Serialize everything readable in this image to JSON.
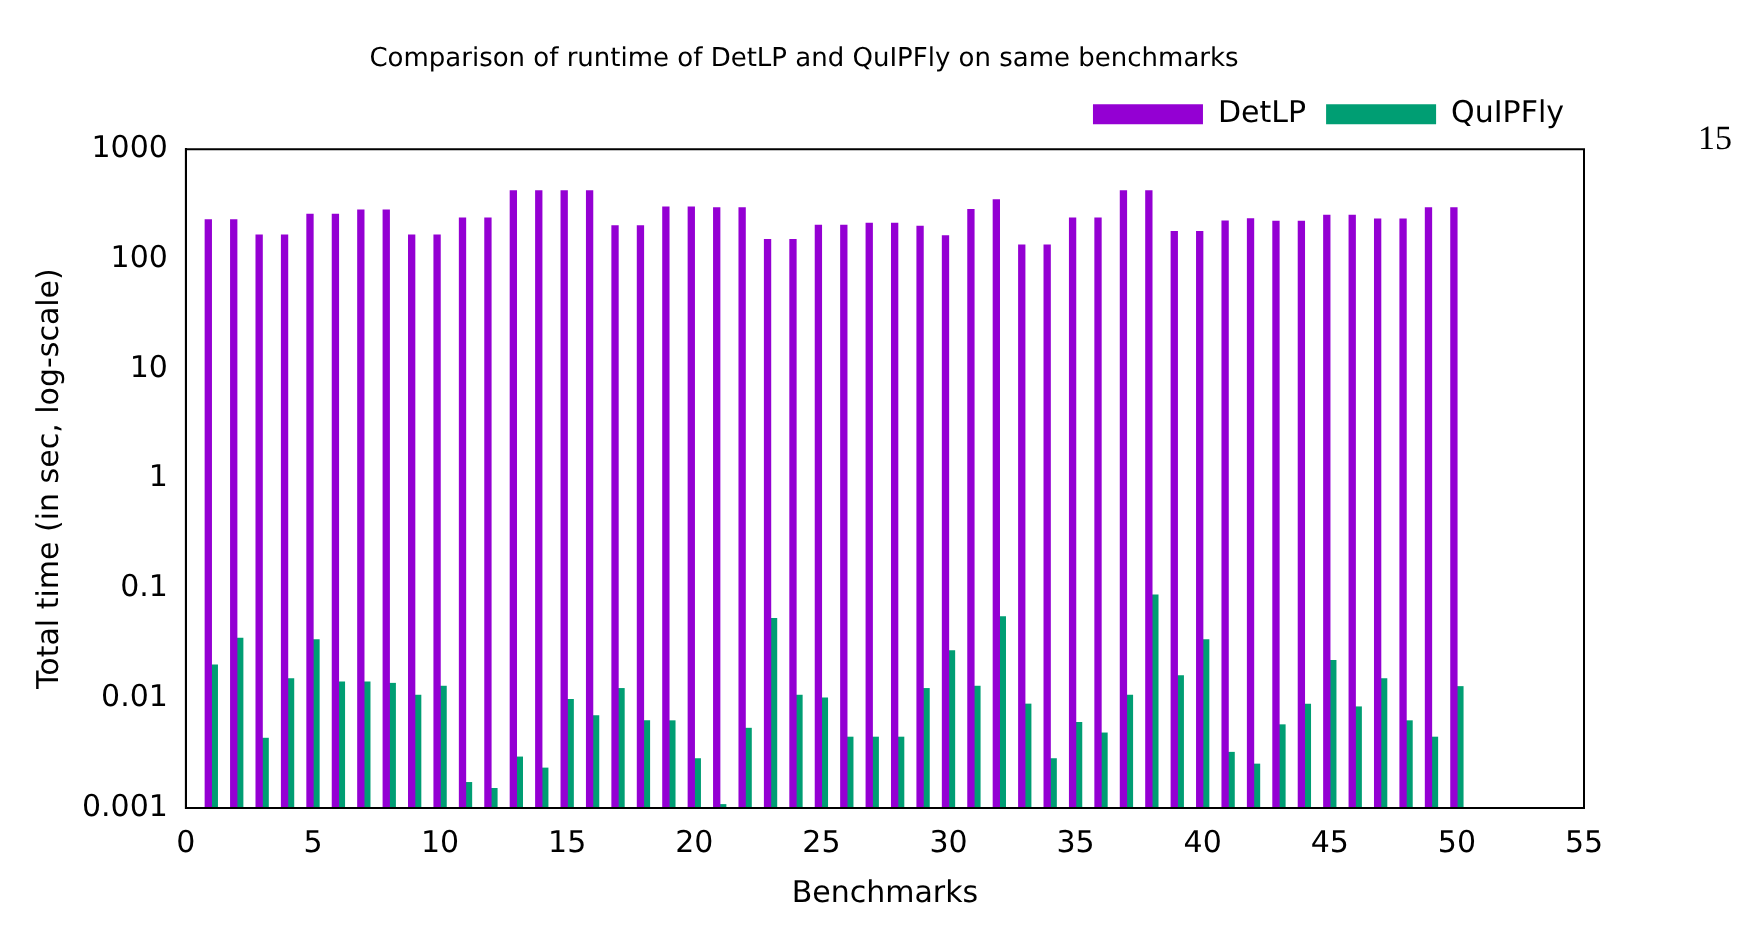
{
  "chart_data": {
    "type": "bar",
    "title": "Comparison of runtime of DetLP and QuIPFly on same benchmarks",
    "xlabel": "Benchmarks",
    "ylabel": "Total time (in sec, log-scale)",
    "x": [
      1,
      2,
      3,
      4,
      5,
      6,
      7,
      8,
      9,
      10,
      11,
      12,
      13,
      14,
      15,
      16,
      17,
      18,
      19,
      20,
      21,
      22,
      23,
      24,
      25,
      26,
      27,
      28,
      29,
      30,
      31,
      32,
      33,
      34,
      35,
      36,
      37,
      38,
      39,
      40,
      41,
      42,
      43,
      44,
      45,
      46,
      47,
      48,
      49,
      50
    ],
    "series": [
      {
        "name": "DetLP",
        "color": "#9400d3",
        "values": [
          227,
          227,
          165,
          165,
          255,
          255,
          278,
          278,
          165,
          165,
          236,
          236,
          417,
          417,
          417,
          417,
          200,
          200,
          296,
          296,
          292,
          292,
          150,
          150,
          202,
          202,
          211,
          211,
          198,
          162,
          282,
          345,
          134,
          134,
          236,
          236,
          417,
          417,
          177,
          177,
          221,
          232,
          220,
          220,
          250,
          250,
          230,
          230,
          292,
          292
        ]
      },
      {
        "name": "QuIPFly",
        "color": "#009e73",
        "values": [
          0.02,
          0.035,
          0.0043,
          0.015,
          0.034,
          0.014,
          0.014,
          0.0136,
          0.0106,
          0.0128,
          0.0017,
          0.0015,
          0.0029,
          0.0023,
          0.0097,
          0.0069,
          0.0122,
          0.0062,
          0.0062,
          0.0028,
          0.00107,
          0.0053,
          0.053,
          0.0106,
          0.01,
          0.0044,
          0.0044,
          0.0044,
          0.0122,
          0.027,
          0.0128,
          0.055,
          0.0088,
          0.0028,
          0.006,
          0.0048,
          0.0106,
          0.087,
          0.016,
          0.034,
          0.0032,
          0.0025,
          0.0057,
          0.0088,
          0.022,
          0.0083,
          0.015,
          0.0062,
          0.0044,
          0.0127
        ]
      }
    ],
    "xlim": [
      0,
      55
    ],
    "xticks": [
      0,
      5,
      10,
      15,
      20,
      25,
      30,
      35,
      40,
      45,
      50,
      55
    ],
    "ylim": [
      0.001,
      1000
    ],
    "yticks": [
      0.001,
      0.01,
      0.1,
      1,
      10,
      100,
      1000
    ],
    "log": "y",
    "grid": false,
    "legend": "top right",
    "annotations": [
      "15"
    ]
  }
}
